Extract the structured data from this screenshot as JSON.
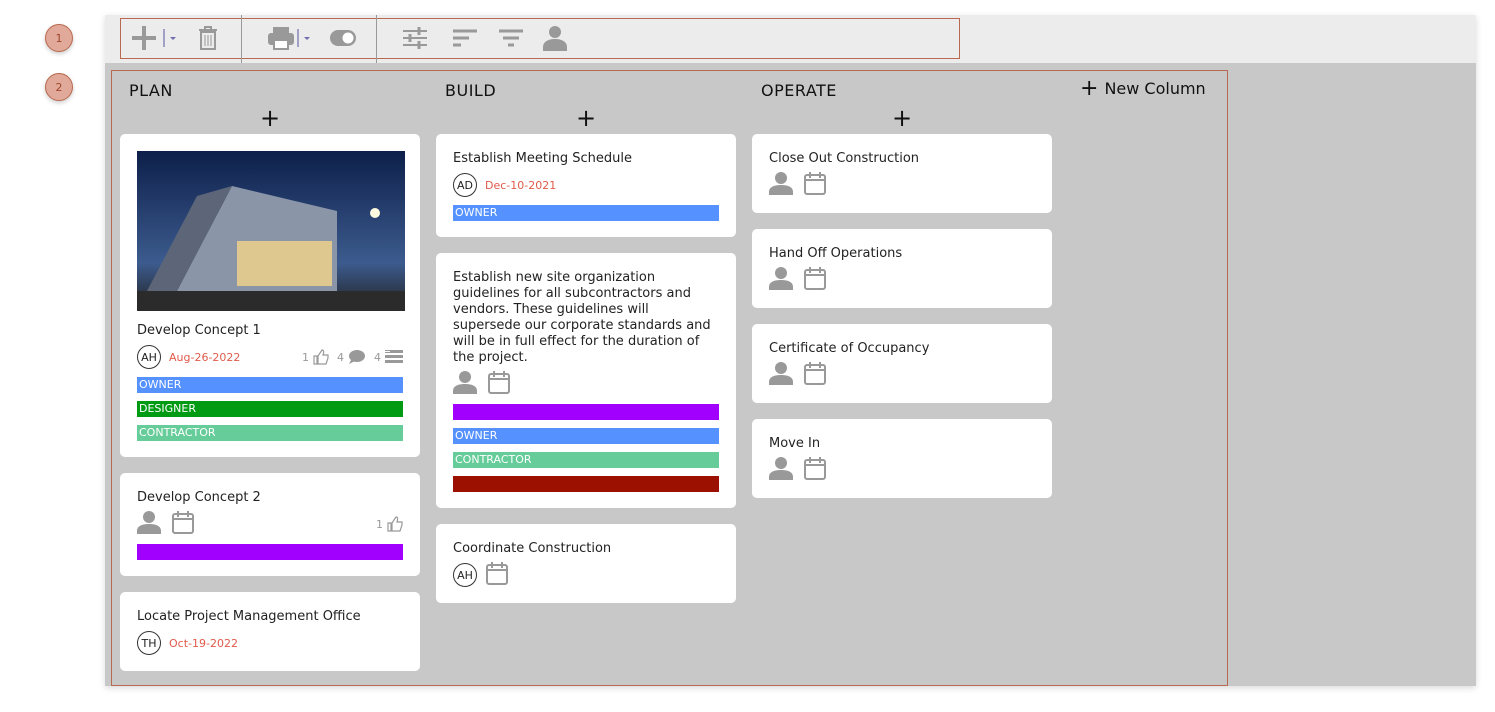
{
  "markers": [
    "1",
    "2"
  ],
  "toolbar": {
    "icons": [
      "add-icon",
      "dropdown-icon",
      "trash-icon",
      "print-icon",
      "dropdown-icon",
      "toggle-icon",
      "sliders-icon",
      "sort-icon",
      "filter-icon",
      "person-icon"
    ]
  },
  "board": {
    "new_column_label": "New Column",
    "columns": [
      {
        "title": "PLAN",
        "cards": [
          {
            "title": "Develop Concept 1",
            "has_image": true,
            "avatar": "AH",
            "date": "Aug-26-2022",
            "likes": "1",
            "comments": "4",
            "subtasks": "4",
            "tags": [
              {
                "label": "OWNER",
                "color": "#5591ff"
              },
              {
                "label": "DESIGNER",
                "color": "#009b13"
              },
              {
                "label": "CONTRACTOR",
                "color": "#66cc99"
              }
            ]
          },
          {
            "title": "Develop Concept 2",
            "likes": "1",
            "tags": [
              {
                "label": "",
                "color": "#a100ff"
              }
            ]
          },
          {
            "title": "Locate Project Management Office",
            "avatar": "TH",
            "date": "Oct-19-2022",
            "tags": []
          }
        ]
      },
      {
        "title": "BUILD",
        "cards": [
          {
            "title": "Establish Meeting Schedule",
            "avatar": "AD",
            "date": "Dec-10-2021",
            "tags": [
              {
                "label": "OWNER",
                "color": "#5591ff"
              }
            ]
          },
          {
            "title": "Establish new site organization guidelines for all subcontractors and vendors. These guidelines will supersede our corporate standards and will be in full effect for the duration of the project.",
            "tags": [
              {
                "label": "",
                "color": "#a100ff"
              },
              {
                "label": "OWNER",
                "color": "#5591ff"
              },
              {
                "label": "CONTRACTOR",
                "color": "#66cc99"
              },
              {
                "label": "",
                "color": "#9b1000"
              }
            ]
          },
          {
            "title": "Coordinate Construction",
            "avatar": "AH",
            "show_calendar": true,
            "tags": []
          }
        ]
      },
      {
        "title": "OPERATE",
        "cards": [
          {
            "title": "Close Out Construction",
            "tags": []
          },
          {
            "title": "Hand Off Operations",
            "tags": []
          },
          {
            "title": "Certificate of Occupancy",
            "tags": []
          },
          {
            "title": "Move In",
            "tags": []
          }
        ]
      }
    ]
  }
}
